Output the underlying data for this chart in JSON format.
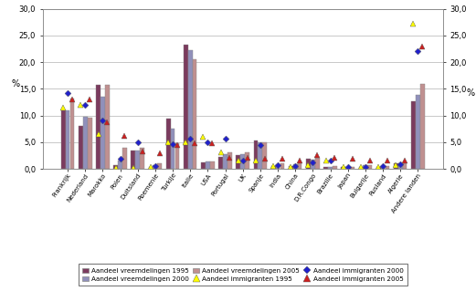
{
  "categories": [
    "Frankrijk",
    "Nederland",
    "Marokko",
    "Polen",
    "Duitsland",
    "Roemenie",
    "Turkije",
    "Italie",
    "USA",
    "Portugal",
    "UK",
    "Spanje",
    "India",
    "China",
    "D.R.Congo",
    "Brazilie",
    "Japan",
    "Bulgarije",
    "Rusland",
    "Algerie",
    "Andere landen"
  ],
  "bar_1995": [
    11.0,
    8.1,
    15.7,
    0.7,
    3.5,
    0.3,
    9.4,
    23.3,
    1.2,
    2.3,
    2.5,
    5.3,
    0.6,
    0.5,
    1.8,
    0.4,
    0.3,
    0.4,
    0.4,
    1.0,
    12.7
  ],
  "bar_2000": [
    11.0,
    9.7,
    13.5,
    1.5,
    3.5,
    0.7,
    7.6,
    22.2,
    1.3,
    2.8,
    2.8,
    5.0,
    0.9,
    0.8,
    1.7,
    0.4,
    0.4,
    0.7,
    0.5,
    1.1,
    13.9
  ],
  "bar_2005": [
    13.2,
    9.5,
    15.7,
    4.0,
    4.0,
    1.1,
    4.8,
    20.6,
    1.3,
    3.0,
    3.0,
    5.0,
    1.1,
    1.2,
    2.0,
    0.5,
    0.4,
    0.7,
    0.5,
    1.0,
    15.9
  ],
  "imm_1995": {
    "0": 11.5,
    "1": 12.0,
    "2": 6.5,
    "3": 0.2,
    "4": 0.1,
    "5": 0.4,
    "6": 5.0,
    "7": 5.0,
    "8": 6.0,
    "9": 3.0,
    "10": 1.5,
    "11": 1.5,
    "12": 0.5,
    "13": 0.3,
    "14": 0.7,
    "15": 1.5,
    "16": 0.4,
    "17": 0.3,
    "18": 0.4,
    "19": 0.7,
    "20": 27.2
  },
  "imm_2000": {
    "0": 14.2,
    "1": 12.0,
    "2": 9.0,
    "3": 1.8,
    "4": 5.0,
    "5": 0.5,
    "6": 4.7,
    "7": 5.6,
    "8": 5.0,
    "9": 5.7,
    "10": 1.5,
    "11": 4.5,
    "12": 0.7,
    "13": 0.5,
    "14": 1.2,
    "15": 1.5,
    "16": 0.4,
    "17": 0.4,
    "18": 0.6,
    "19": 0.8,
    "20": 22.0
  },
  "imm_2005": {
    "0": 13.0,
    "1": 13.0,
    "2": 8.7,
    "3": 6.2,
    "4": 3.3,
    "5": 2.9,
    "6": 4.5,
    "7": 4.8,
    "8": 4.8,
    "9": 2.0,
    "10": 2.0,
    "11": 1.9,
    "12": 1.8,
    "13": 1.5,
    "14": 2.5,
    "15": 2.0,
    "16": 1.8,
    "17": 1.5,
    "18": 1.5,
    "19": 1.5,
    "20": 23.0
  },
  "bar_color_1995": "#7B3B5E",
  "bar_color_2000": "#9090BB",
  "bar_color_2005": "#C09090",
  "imm_color_1995": "#FFFF00",
  "imm_color_2000": "#2020CC",
  "imm_color_2005": "#CC2020",
  "ylabel_left": "%",
  "ylabel_right": "%",
  "ylim": [
    0,
    30
  ],
  "yticks": [
    0.0,
    5.0,
    10.0,
    15.0,
    20.0,
    25.0,
    30.0
  ],
  "legend_labels": [
    "Aandeel vreemdelingen 1995",
    "Aandeel vreemdelingen 2000",
    "Aandeel vreemdelingen 2005",
    "Aandeel immigranten 1995",
    "Aandeel immigranten 2000",
    "Aandeel immigranten 2005"
  ],
  "figsize": [
    5.21,
    3.19
  ],
  "dpi": 100
}
